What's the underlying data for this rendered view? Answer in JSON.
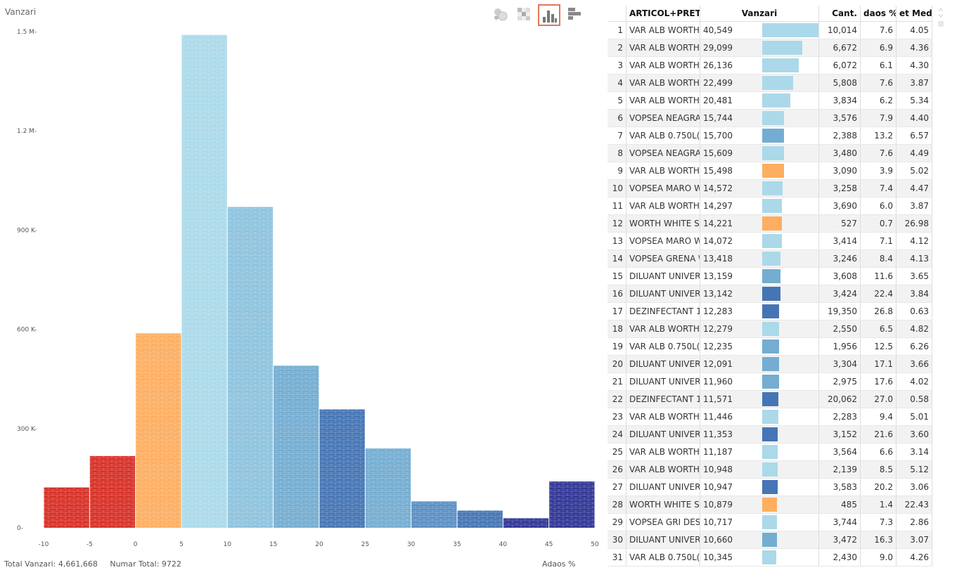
{
  "chart_title": "Vanzari",
  "toolbar": {
    "buttons": [
      {
        "name": "bubble-view-button",
        "icon": "bubbles-icon",
        "active": false
      },
      {
        "name": "heatmap-view-button",
        "icon": "grid-icon",
        "active": false
      },
      {
        "name": "histogram-view-button",
        "icon": "column-chart-icon",
        "active": true
      },
      {
        "name": "bar-view-button",
        "icon": "horizontal-bars-icon",
        "active": false
      }
    ]
  },
  "footer": {
    "total_vanzari": "Total Vanzari: 4,661,668",
    "numar_total": "Numar Total: 9722",
    "x_label": "Adaos %"
  },
  "colors": {
    "red": "#d73027",
    "orange": "#fdae61",
    "light_blue": "#abd9e9",
    "mid_blue": "#74add1",
    "blue": "#4575b4",
    "dark_blue": "#313695"
  },
  "chart_data": {
    "type": "bar",
    "title": "Vanzari",
    "xlabel": "Adaos %",
    "ylabel": "",
    "x_ticks": [
      -10,
      -5,
      0,
      5,
      10,
      15,
      20,
      25,
      30,
      35,
      40,
      45,
      50
    ],
    "y_ticks": [
      {
        "value": 0,
        "label": "0-"
      },
      {
        "value": 300000,
        "label": "300 K-"
      },
      {
        "value": 600000,
        "label": "600 K-"
      },
      {
        "value": 900000,
        "label": "900 K-"
      },
      {
        "value": 1200000,
        "label": "1.2 M-"
      },
      {
        "value": 1500000,
        "label": "1.5 M-"
      }
    ],
    "ylim": [
      0,
      1500000
    ],
    "xlim": [
      -10,
      50
    ],
    "bins": [
      {
        "from": -10,
        "to": -5,
        "value": 122000,
        "color": "#d73027"
      },
      {
        "from": -5,
        "to": 0,
        "value": 217000,
        "color": "#d73027"
      },
      {
        "from": 0,
        "to": 5,
        "value": 588000,
        "color": "#fdae61"
      },
      {
        "from": 5,
        "to": 10,
        "value": 1490000,
        "color": "#abd9e9"
      },
      {
        "from": 10,
        "to": 15,
        "value": 970000,
        "color": "#8ec3de"
      },
      {
        "from": 15,
        "to": 20,
        "value": 490000,
        "color": "#74add1"
      },
      {
        "from": 20,
        "to": 25,
        "value": 358000,
        "color": "#4575b4"
      },
      {
        "from": 25,
        "to": 30,
        "value": 240000,
        "color": "#74add1"
      },
      {
        "from": 30,
        "to": 35,
        "value": 80000,
        "color": "#5b8fc4"
      },
      {
        "from": 35,
        "to": 40,
        "value": 52000,
        "color": "#4575b4"
      },
      {
        "from": 40,
        "to": 45,
        "value": 29000,
        "color": "#313695"
      },
      {
        "from": 45,
        "to": 50,
        "value": 140000,
        "color": "#313695"
      }
    ]
  },
  "table": {
    "headers": {
      "name": "ARTICOL+PRET",
      "vanzari": "Vanzari",
      "cant": "Cant.",
      "adaos": "daos %",
      "pret": "et Med."
    },
    "max_value": 40549,
    "rows": [
      {
        "idx": "1",
        "name": "VAR ALB WORTH",
        "value": "40,549",
        "v": 40549,
        "color": "#abd9e9",
        "cant": "10,014",
        "adaos": "7.6",
        "pret": "4.05"
      },
      {
        "idx": "2",
        "name": "VAR ALB WORTH",
        "value": "29,099",
        "v": 29099,
        "color": "#abd9e9",
        "cant": "6,672",
        "adaos": "6.9",
        "pret": "4.36"
      },
      {
        "idx": "3",
        "name": "VAR ALB WORTH",
        "value": "26,136",
        "v": 26136,
        "color": "#abd9e9",
        "cant": "6,072",
        "adaos": "6.1",
        "pret": "4.30"
      },
      {
        "idx": "4",
        "name": "VAR ALB WORTH",
        "value": "22,499",
        "v": 22499,
        "color": "#abd9e9",
        "cant": "5,808",
        "adaos": "7.6",
        "pret": "3.87"
      },
      {
        "idx": "5",
        "name": "VAR ALB WORTH",
        "value": "20,481",
        "v": 20481,
        "color": "#abd9e9",
        "cant": "3,834",
        "adaos": "6.2",
        "pret": "5.34"
      },
      {
        "idx": "6",
        "name": "VOPSEA NEAGRA",
        "value": "15,744",
        "v": 15744,
        "color": "#abd9e9",
        "cant": "3,576",
        "adaos": "7.9",
        "pret": "4.40"
      },
      {
        "idx": "7",
        "name": "VAR ALB 0.750L(",
        "value": "15,700",
        "v": 15700,
        "color": "#74add1",
        "cant": "2,388",
        "adaos": "13.2",
        "pret": "6.57"
      },
      {
        "idx": "8",
        "name": "VOPSEA NEAGRA",
        "value": "15,609",
        "v": 15609,
        "color": "#abd9e9",
        "cant": "3,480",
        "adaos": "7.6",
        "pret": "4.49"
      },
      {
        "idx": "9",
        "name": "VAR ALB WORTH",
        "value": "15,498",
        "v": 15498,
        "color": "#fdae61",
        "cant": "3,090",
        "adaos": "3.9",
        "pret": "5.02"
      },
      {
        "idx": "10",
        "name": "VOPSEA MARO W",
        "value": "14,572",
        "v": 14572,
        "color": "#abd9e9",
        "cant": "3,258",
        "adaos": "7.4",
        "pret": "4.47"
      },
      {
        "idx": "11",
        "name": "VAR ALB WORTH",
        "value": "14,297",
        "v": 14297,
        "color": "#abd9e9",
        "cant": "3,690",
        "adaos": "6.0",
        "pret": "3.87"
      },
      {
        "idx": "12",
        "name": "WORTH WHITE S",
        "value": "14,221",
        "v": 14221,
        "color": "#fdae61",
        "cant": "527",
        "adaos": "0.7",
        "pret": "26.98"
      },
      {
        "idx": "13",
        "name": "VOPSEA MARO W",
        "value": "14,072",
        "v": 14072,
        "color": "#abd9e9",
        "cant": "3,414",
        "adaos": "7.1",
        "pret": "4.12"
      },
      {
        "idx": "14",
        "name": "VOPSEA GRENA \\",
        "value": "13,418",
        "v": 13418,
        "color": "#abd9e9",
        "cant": "3,246",
        "adaos": "8.4",
        "pret": "4.13"
      },
      {
        "idx": "15",
        "name": "DILUANT UNIVER",
        "value": "13,159",
        "v": 13159,
        "color": "#74add1",
        "cant": "3,608",
        "adaos": "11.6",
        "pret": "3.65"
      },
      {
        "idx": "16",
        "name": "DILUANT UNIVER",
        "value": "13,142",
        "v": 13142,
        "color": "#4575b4",
        "cant": "3,424",
        "adaos": "22.4",
        "pret": "3.84"
      },
      {
        "idx": "17",
        "name": "DEZINFECTANT 1",
        "value": "12,283",
        "v": 12283,
        "color": "#4575b4",
        "cant": "19,350",
        "adaos": "26.8",
        "pret": "0.63"
      },
      {
        "idx": "18",
        "name": "VAR ALB WORTH",
        "value": "12,279",
        "v": 12279,
        "color": "#abd9e9",
        "cant": "2,550",
        "adaos": "6.5",
        "pret": "4.82"
      },
      {
        "idx": "19",
        "name": "VAR ALB 0.750L(",
        "value": "12,235",
        "v": 12235,
        "color": "#74add1",
        "cant": "1,956",
        "adaos": "12.5",
        "pret": "6.26"
      },
      {
        "idx": "20",
        "name": "DILUANT UNIVER",
        "value": "12,091",
        "v": 12091,
        "color": "#74add1",
        "cant": "3,304",
        "adaos": "17.1",
        "pret": "3.66"
      },
      {
        "idx": "21",
        "name": "DILUANT UNIVER",
        "value": "11,960",
        "v": 11960,
        "color": "#74add1",
        "cant": "2,975",
        "adaos": "17.6",
        "pret": "4.02"
      },
      {
        "idx": "22",
        "name": "DEZINFECTANT 1",
        "value": "11,571",
        "v": 11571,
        "color": "#4575b4",
        "cant": "20,062",
        "adaos": "27.0",
        "pret": "0.58"
      },
      {
        "idx": "23",
        "name": "VAR ALB WORTH",
        "value": "11,446",
        "v": 11446,
        "color": "#abd9e9",
        "cant": "2,283",
        "adaos": "9.4",
        "pret": "5.01"
      },
      {
        "idx": "24",
        "name": "DILUANT UNIVER",
        "value": "11,353",
        "v": 11353,
        "color": "#4575b4",
        "cant": "3,152",
        "adaos": "21.6",
        "pret": "3.60"
      },
      {
        "idx": "25",
        "name": "VAR ALB WORTH",
        "value": "11,187",
        "v": 11187,
        "color": "#abd9e9",
        "cant": "3,564",
        "adaos": "6.6",
        "pret": "3.14"
      },
      {
        "idx": "26",
        "name": "VAR ALB WORTH",
        "value": "10,948",
        "v": 10948,
        "color": "#abd9e9",
        "cant": "2,139",
        "adaos": "8.5",
        "pret": "5.12"
      },
      {
        "idx": "27",
        "name": "DILUANT UNIVER",
        "value": "10,947",
        "v": 10947,
        "color": "#4575b4",
        "cant": "3,583",
        "adaos": "20.2",
        "pret": "3.06"
      },
      {
        "idx": "28",
        "name": "WORTH WHITE S",
        "value": "10,879",
        "v": 10879,
        "color": "#fdae61",
        "cant": "485",
        "adaos": "1.4",
        "pret": "22.43"
      },
      {
        "idx": "29",
        "name": "VOPSEA GRI DES",
        "value": "10,717",
        "v": 10717,
        "color": "#abd9e9",
        "cant": "3,744",
        "adaos": "7.3",
        "pret": "2.86"
      },
      {
        "idx": "30",
        "name": "DILUANT UNIVER",
        "value": "10,660",
        "v": 10660,
        "color": "#74add1",
        "cant": "3,472",
        "adaos": "16.3",
        "pret": "3.07"
      },
      {
        "idx": "31",
        "name": "VAR ALB 0.750L(",
        "value": "10,345",
        "v": 10345,
        "color": "#abd9e9",
        "cant": "2,430",
        "adaos": "9.0",
        "pret": "4.26"
      }
    ]
  }
}
